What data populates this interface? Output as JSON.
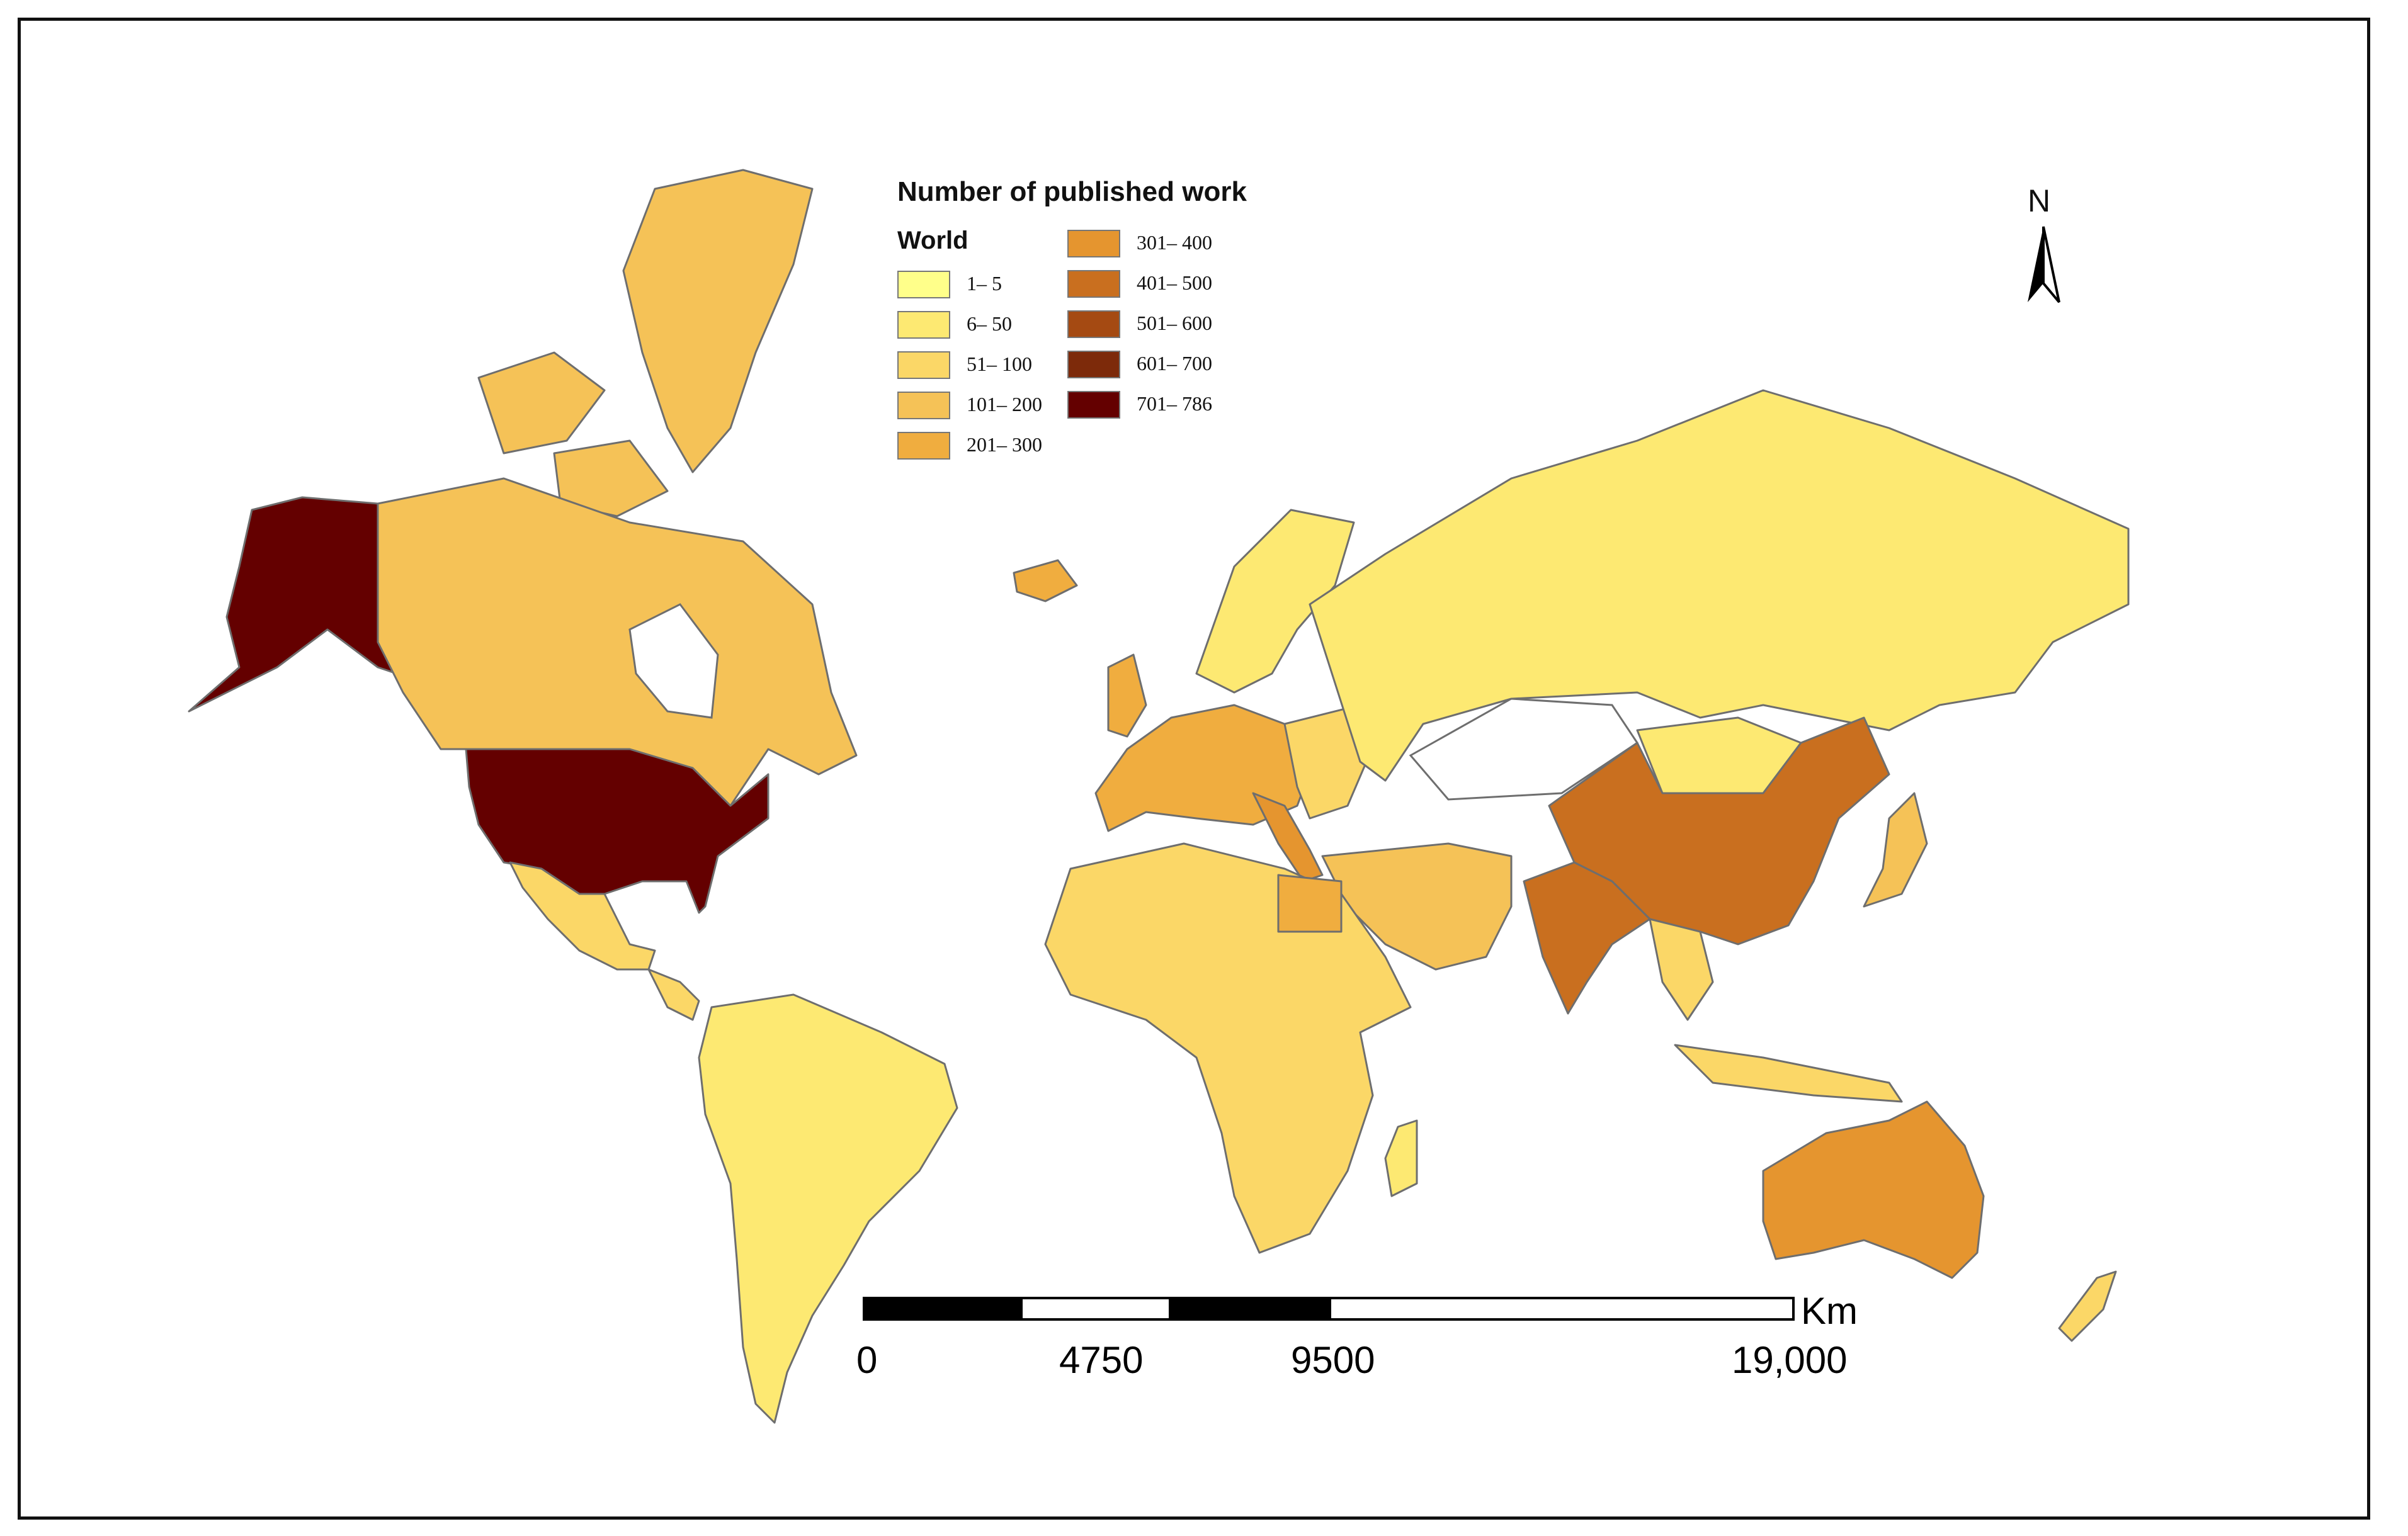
{
  "legend": {
    "title": "Number of published work",
    "subtitle": "World",
    "classes": [
      {
        "label": "1– 5",
        "color": "#ffff8a"
      },
      {
        "label": "6– 50",
        "color": "#fde972"
      },
      {
        "label": "51– 100",
        "color": "#fbd767"
      },
      {
        "label": "101– 200",
        "color": "#f5c257"
      },
      {
        "label": "201– 300",
        "color": "#f0ad3f"
      },
      {
        "label": "301– 400",
        "color": "#e5952f"
      },
      {
        "label": "401– 500",
        "color": "#c96f1f"
      },
      {
        "label": "501– 600",
        "color": "#a54a12"
      },
      {
        "label": "601– 700",
        "color": "#7d2a0a"
      },
      {
        "label": "701– 786",
        "color": "#640000"
      }
    ]
  },
  "north_arrow": {
    "label": "N",
    "icon": "north-arrow-icon"
  },
  "scale_bar": {
    "unit": "Km",
    "ticks": [
      "0",
      "4750",
      "9500",
      "19,000"
    ]
  },
  "regions": {
    "alaska": {
      "class": "701– 786"
    },
    "united_states": {
      "class": "701– 786"
    },
    "canada": {
      "class": "101– 200"
    },
    "greenland": {
      "class": "101– 200"
    },
    "mexico": {
      "class": "51– 100"
    },
    "south_america": {
      "class": "6– 50"
    },
    "europe_west": {
      "class": "201– 300"
    },
    "italy": {
      "class": "301– 400"
    },
    "russia": {
      "class": "6– 50"
    },
    "china": {
      "class": "401– 500"
    },
    "india": {
      "class": "401– 500"
    },
    "australia": {
      "class": "301– 400"
    },
    "africa": {
      "class": "51– 100"
    },
    "egypt": {
      "class": "201– 300"
    },
    "middle_east": {
      "class": "101– 200"
    },
    "japan": {
      "class": "101– 200"
    },
    "southeast_asia": {
      "class": "51– 100"
    }
  }
}
